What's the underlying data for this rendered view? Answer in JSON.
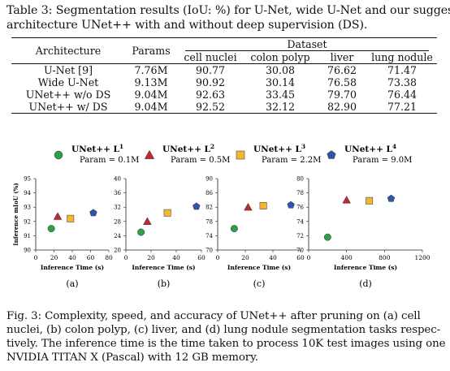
{
  "table_caption": {
    "line1": "Table 3: Segmentation results (IoU: %) for U-Net, wide U-Net and our suggested",
    "line2": "architecture UNet++ with and without deep supervision (DS)."
  },
  "table": {
    "header_architecture": "Architecture",
    "header_params": "Params",
    "header_dataset": "Dataset",
    "datasets": [
      "cell nuclei",
      "colon polyp",
      "liver",
      "lung nodule"
    ],
    "rows": [
      {
        "architecture": "U-Net [9]",
        "params": "7.76M",
        "values": [
          "90.77",
          "30.08",
          "76.62",
          "71.47"
        ]
      },
      {
        "architecture": "Wide U-Net",
        "params": "9.13M",
        "values": [
          "90.92",
          "30.14",
          "76.58",
          "73.38"
        ]
      },
      {
        "architecture": "UNet++ w/o DS",
        "params": "9.04M",
        "values": [
          "92.63",
          "33.45",
          "79.70",
          "76.44"
        ]
      },
      {
        "architecture": "UNet++ w/ DS",
        "params": "9.04M",
        "values": [
          "92.52",
          "32.12",
          "82.90",
          "77.21"
        ]
      }
    ]
  },
  "legend": [
    {
      "name": "UNet++ L",
      "sup": "1",
      "param": "Param = 0.1M",
      "color": "#2e9e47",
      "shape": "circle"
    },
    {
      "name": "UNet++ L",
      "sup": "2",
      "param": "Param = 0.5M",
      "color": "#c0282f",
      "shape": "triangle"
    },
    {
      "name": "UNet++ L",
      "sup": "3",
      "param": "Param = 2.2M",
      "color": "#f2b632",
      "shape": "square"
    },
    {
      "name": "UNet++ L",
      "sup": "4",
      "param": "Param = 9.0M",
      "color": "#2d57a8",
      "shape": "pentagon"
    }
  ],
  "chart_data": [
    {
      "type": "scatter",
      "panel": "(a)",
      "xlabel": "Inference Time (s)",
      "ylabel": "Inference mIoU (%)",
      "xlim": [
        0,
        80
      ],
      "ylim": [
        90,
        95
      ],
      "xticks": [
        "0",
        "20",
        "40",
        "60",
        "80"
      ],
      "yticks": [
        "90",
        "91",
        "92",
        "93",
        "94",
        "95"
      ],
      "points": [
        {
          "series": "L1",
          "x": 17,
          "y": 91.5
        },
        {
          "series": "L2",
          "x": 24,
          "y": 92.35
        },
        {
          "series": "L3",
          "x": 38,
          "y": 92.2
        },
        {
          "series": "L4",
          "x": 63,
          "y": 92.6
        }
      ]
    },
    {
      "type": "scatter",
      "panel": "(b)",
      "xlabel": "Inference Time (s)",
      "ylabel": "",
      "xlim": [
        0,
        60
      ],
      "ylim": [
        20,
        40
      ],
      "xticks": [
        "0",
        "20",
        "40",
        "60"
      ],
      "yticks": [
        "20",
        "24",
        "28",
        "32",
        "36",
        "40"
      ],
      "points": [
        {
          "series": "L1",
          "x": 12,
          "y": 25.0
        },
        {
          "series": "L2",
          "x": 17,
          "y": 28.0
        },
        {
          "series": "L3",
          "x": 33,
          "y": 30.4
        },
        {
          "series": "L4",
          "x": 56,
          "y": 32.2
        }
      ]
    },
    {
      "type": "scatter",
      "panel": "(c)",
      "xlabel": "Inference Time (s)",
      "ylabel": "",
      "xlim": [
        0,
        60
      ],
      "ylim": [
        70,
        90
      ],
      "xticks": [
        "0",
        "20",
        "40",
        "60"
      ],
      "yticks": [
        "70",
        "74",
        "78",
        "82",
        "86",
        "90"
      ],
      "points": [
        {
          "series": "L1",
          "x": 12,
          "y": 76.0
        },
        {
          "series": "L2",
          "x": 22,
          "y": 82.0
        },
        {
          "series": "L3",
          "x": 33,
          "y": 82.4
        },
        {
          "series": "L4",
          "x": 53,
          "y": 82.6
        }
      ]
    },
    {
      "type": "scatter",
      "panel": "(d)",
      "xlabel": "Inference Time (s)",
      "ylabel": "",
      "xlim": [
        0,
        1200
      ],
      "ylim": [
        70,
        80
      ],
      "xticks": [
        "0",
        "400",
        "800",
        "1200"
      ],
      "yticks": [
        "70",
        "72",
        "74",
        "76",
        "78",
        "80"
      ],
      "points": [
        {
          "series": "L1",
          "x": 200,
          "y": 71.8
        },
        {
          "series": "L2",
          "x": 400,
          "y": 77.0
        },
        {
          "series": "L3",
          "x": 640,
          "y": 76.9
        },
        {
          "series": "L4",
          "x": 870,
          "y": 77.2
        }
      ]
    }
  ],
  "figure_caption": {
    "line1": "Fig. 3: Complexity, speed, and accuracy of UNet++ after pruning on (a) cell",
    "line2": "nuclei, (b) colon polyp, (c) liver, and (d) lung nodule segmentation tasks respec-",
    "line3": "tively. The inference time is the time taken to process 10K test images using one",
    "line4": "NVIDIA TITAN X (Pascal) with 12 GB memory."
  }
}
